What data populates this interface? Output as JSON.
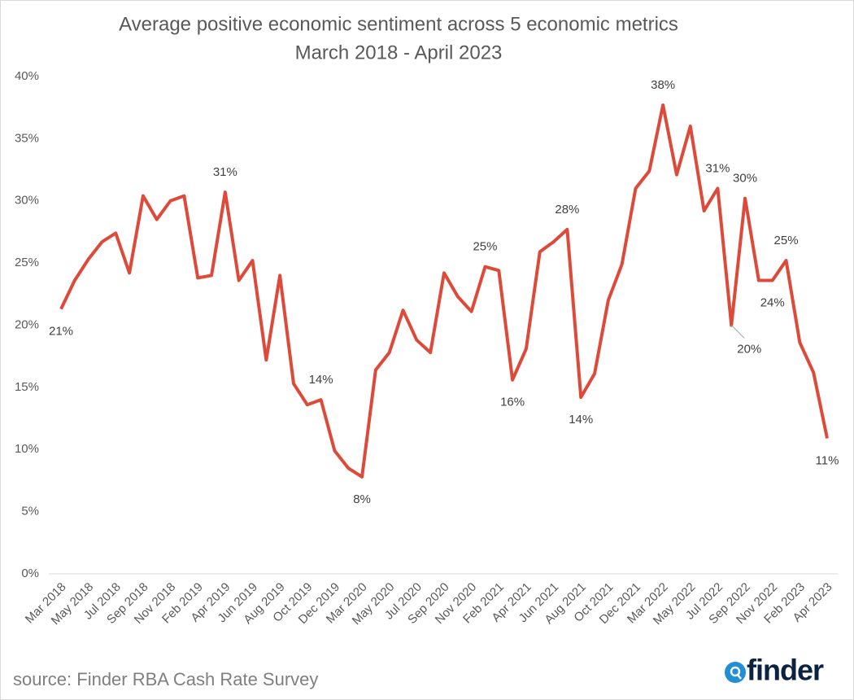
{
  "chart_data": {
    "type": "line",
    "title": "Average positive economic sentiment across 5 economic metrics",
    "subtitle": "March 2018 - April 2023",
    "categories": [
      "Mar 2018",
      null,
      "May 2018",
      null,
      "Jul 2018",
      null,
      "Sep 2018",
      null,
      "Nov 2018",
      null,
      "Feb 2019",
      null,
      "Apr 2019",
      null,
      "Jun 2019",
      null,
      "Aug 2019",
      null,
      "Oct 2019",
      null,
      "Dec 2019",
      null,
      "Mar 2020",
      null,
      "May 2020",
      null,
      "Jul 2020",
      null,
      "Sep 2020",
      null,
      "Nov 2020",
      null,
      "Feb 2021",
      null,
      "Apr 2021",
      null,
      "Jun 2021",
      null,
      "Aug 2021",
      null,
      "Oct 2021",
      null,
      "Dec 2021",
      null,
      "Mar 2022",
      null,
      "May 2022",
      null,
      "Jul 2022",
      null,
      "Sep 2022",
      null,
      "Nov 2022",
      null,
      "Feb 2023",
      null,
      "Apr 2023"
    ],
    "series": [
      {
        "name": "Average positive economic sentiment",
        "color": "#de4a3a",
        "values": [
          21.3,
          23.6,
          25.3,
          26.7,
          27.4,
          24.2,
          30.4,
          28.5,
          30.0,
          30.4,
          23.8,
          24.0,
          30.7,
          23.6,
          25.2,
          17.2,
          24.0,
          15.3,
          13.6,
          14.0,
          9.9,
          8.5,
          7.8,
          16.4,
          17.8,
          21.2,
          18.8,
          17.8,
          24.2,
          22.3,
          21.1,
          24.7,
          24.4,
          15.6,
          18.1,
          25.9,
          26.7,
          27.7,
          14.2,
          16.1,
          22.0,
          24.9,
          31.0,
          32.4,
          37.7,
          32.1,
          36.0,
          29.2,
          31.0,
          20.0,
          30.2,
          23.6,
          23.6,
          25.2,
          18.6,
          16.2,
          10.9
        ],
        "value_labels": [
          "21%",
          null,
          null,
          null,
          null,
          null,
          null,
          null,
          null,
          null,
          null,
          null,
          "31%",
          null,
          null,
          null,
          null,
          null,
          null,
          "14%",
          null,
          null,
          "8%",
          null,
          null,
          null,
          null,
          null,
          null,
          null,
          null,
          "25%",
          null,
          "16%",
          null,
          null,
          null,
          "28%",
          "14%",
          null,
          null,
          null,
          null,
          null,
          "38%",
          null,
          null,
          null,
          "31%",
          "20%",
          "30%",
          null,
          "24%",
          "25%",
          null,
          null,
          "11%"
        ]
      }
    ],
    "ylim": [
      0,
      40
    ],
    "yticks": [
      {
        "value": 0,
        "label": "0%"
      },
      {
        "value": 5,
        "label": "5%"
      },
      {
        "value": 10,
        "label": "10%"
      },
      {
        "value": 15,
        "label": "15%"
      },
      {
        "value": 20,
        "label": "20%"
      },
      {
        "value": 25,
        "label": "25%"
      },
      {
        "value": 30,
        "label": "30%"
      },
      {
        "value": 35,
        "label": "35%"
      },
      {
        "value": 40,
        "label": "40%"
      }
    ],
    "grid": false
  },
  "source": "source: Finder RBA Cash Rate Survey",
  "logo": "finder"
}
